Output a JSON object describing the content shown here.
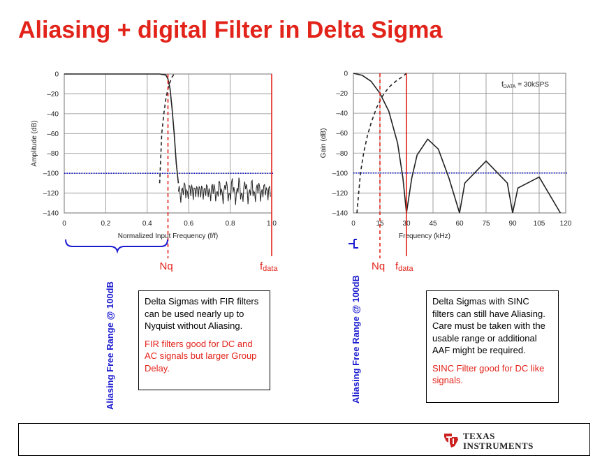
{
  "title": "Aliasing + digital Filter in Delta Sigma",
  "chart_data": [
    {
      "type": "line",
      "xlabel": "Normalized Input Frequency (f_IN/f_DATA)",
      "ylabel": "Amplitude (dB)",
      "xlim": [
        0,
        1.0
      ],
      "ylim": [
        -140,
        0
      ],
      "xticks": [
        "0",
        "0.2",
        "0.4",
        "0.6",
        "0.8",
        "1.0"
      ],
      "yticks": [
        "0",
        "–20",
        "–40",
        "–60",
        "–80",
        "–100",
        "–120",
        "–140"
      ],
      "grid": true,
      "series": [
        {
          "style": "solid",
          "x": [
            0,
            0.46,
            0.49,
            0.5,
            0.51,
            0.52,
            0.53,
            0.54,
            0.55
          ],
          "y": [
            0,
            0,
            -1,
            -5,
            -15,
            -35,
            -60,
            -90,
            -110
          ]
        },
        {
          "style": "dashed",
          "x": [
            0.46,
            0.47,
            0.48,
            0.49,
            0.5,
            0.51,
            0.52,
            0.53
          ],
          "y": [
            -110,
            -60,
            -40,
            -25,
            -15,
            -8,
            -3,
            0
          ]
        }
      ],
      "markers": [
        {
          "x": 0.5,
          "label": "Nq"
        },
        {
          "x": 1.0,
          "label": "f",
          "sub": "data"
        }
      ],
      "threshold_db": -100
    },
    {
      "type": "line",
      "xlabel": "Frequency (kHz)",
      "ylabel": "Gain (dB)",
      "xlim": [
        0,
        120
      ],
      "ylim": [
        -140,
        0
      ],
      "xticks": [
        "0",
        "15",
        "30",
        "45",
        "60",
        "75",
        "90",
        "105",
        "120"
      ],
      "yticks": [
        "0",
        "–20",
        "–40",
        "–60",
        "–80",
        "–100",
        "–120",
        "–140"
      ],
      "grid": true,
      "annotation": {
        "text": "f",
        "sub": "DATA",
        "rest": " = 30kSPS"
      },
      "series": [
        {
          "style": "solid",
          "note": "sinc main lobe and side lobes, nulls at 30/60/90 kHz",
          "x": [
            0,
            5,
            10,
            15,
            20,
            25,
            28,
            30,
            33,
            36,
            42,
            48,
            54,
            60,
            63,
            75,
            87,
            90,
            93,
            105,
            117
          ],
          "y": [
            0,
            -2,
            -8,
            -20,
            -38,
            -70,
            -105,
            -140,
            -105,
            -82,
            -66,
            -76,
            -105,
            -140,
            -110,
            -88,
            -110,
            -140,
            -115,
            -104,
            -140
          ]
        },
        {
          "style": "dashed",
          "x": [
            2,
            4,
            6,
            8,
            10,
            13,
            16,
            20,
            24,
            28,
            30
          ],
          "y": [
            -140,
            -100,
            -78,
            -62,
            -50,
            -35,
            -24,
            -14,
            -8,
            -3,
            0
          ]
        }
      ],
      "markers": [
        {
          "x": 15,
          "label": "Nq"
        },
        {
          "x": 30,
          "label": "f",
          "sub": "data"
        }
      ],
      "threshold_db": -100
    }
  ],
  "left_panel": {
    "vertical_label": "Aliasing Free Range @ 100dB",
    "note_black": "Delta Sigmas with FIR filters can be used nearly up to Nyquist without Aliasing.",
    "note_red": "FIR filters good for DC and AC signals but larger Group Delay."
  },
  "right_panel": {
    "vertical_label": "Aliasing Free Range @ 100dB",
    "note_black": "Delta Sigmas with SINC filters can still have Aliasing. Care must be taken with the usable range or additional AAF might be required.",
    "note_red": "SINC Filter good for DC like signals."
  },
  "footer": {
    "logo_line1": "TEXAS",
    "logo_line2": "INSTRUMENTS"
  },
  "colors": {
    "accent_red": "#e2231a",
    "threshold_blue": "#1a1ad0",
    "curve": "#222222"
  }
}
